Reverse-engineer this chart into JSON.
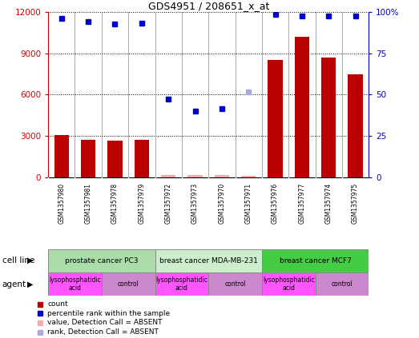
{
  "title": "GDS4951 / 208651_x_at",
  "samples": [
    "GSM1357980",
    "GSM1357981",
    "GSM1357978",
    "GSM1357979",
    "GSM1357972",
    "GSM1357973",
    "GSM1357970",
    "GSM1357971",
    "GSM1357976",
    "GSM1357977",
    "GSM1357974",
    "GSM1357975"
  ],
  "bar_values": [
    3100,
    2700,
    2650,
    2750,
    200,
    150,
    150,
    100,
    8500,
    10200,
    8700,
    7500
  ],
  "bar_color": "#bb0000",
  "absent_bar_indices": [
    4,
    5,
    6,
    7
  ],
  "absent_bar_color": "#ffaaaa",
  "dot_values": [
    11500,
    11300,
    11100,
    11200,
    5700,
    4800,
    5000,
    null,
    11800,
    11700,
    11700,
    11700
  ],
  "absent_dot_index": 7,
  "absent_dot_value": 6200,
  "dot_color": "#0000cc",
  "absent_dot_color": "#aaaadd",
  "ylim_left": [
    0,
    12000
  ],
  "ylim_right": [
    0,
    100
  ],
  "yticks_left": [
    0,
    3000,
    6000,
    9000,
    12000
  ],
  "yticks_right": [
    0,
    25,
    50,
    75,
    100
  ],
  "ytick_labels_right": [
    "0",
    "25",
    "50",
    "75",
    "100%"
  ],
  "left_tick_color": "#cc0000",
  "right_tick_color": "#0000bb",
  "cell_line_groups": [
    {
      "label": "prostate cancer PC3",
      "start": 0,
      "end": 4,
      "color": "#aaddaa"
    },
    {
      "label": "breast cancer MDA-MB-231",
      "start": 4,
      "end": 8,
      "color": "#cceecc"
    },
    {
      "label": "breast cancer MCF7",
      "start": 8,
      "end": 12,
      "color": "#44cc44"
    }
  ],
  "agent_groups": [
    {
      "label": "lysophosphatidic\nacid",
      "start": 0,
      "end": 2,
      "color": "#ff55ff"
    },
    {
      "label": "control",
      "start": 2,
      "end": 4,
      "color": "#cc88cc"
    },
    {
      "label": "lysophosphatidic\nacid",
      "start": 4,
      "end": 6,
      "color": "#ff55ff"
    },
    {
      "label": "control",
      "start": 6,
      "end": 8,
      "color": "#cc88cc"
    },
    {
      "label": "lysophosphatidic\nacid",
      "start": 8,
      "end": 10,
      "color": "#ff55ff"
    },
    {
      "label": "control",
      "start": 10,
      "end": 12,
      "color": "#cc88cc"
    }
  ],
  "legend_items": [
    {
      "label": "count",
      "color": "#bb0000"
    },
    {
      "label": "percentile rank within the sample",
      "color": "#0000cc"
    },
    {
      "label": "value, Detection Call = ABSENT",
      "color": "#ffaaaa"
    },
    {
      "label": "rank, Detection Call = ABSENT",
      "color": "#aaaadd"
    }
  ],
  "cell_line_label": "cell line",
  "agent_label": "agent",
  "sample_bg_color": "#d8d8d8",
  "fig_width": 5.23,
  "fig_height": 4.23,
  "dpi": 100
}
